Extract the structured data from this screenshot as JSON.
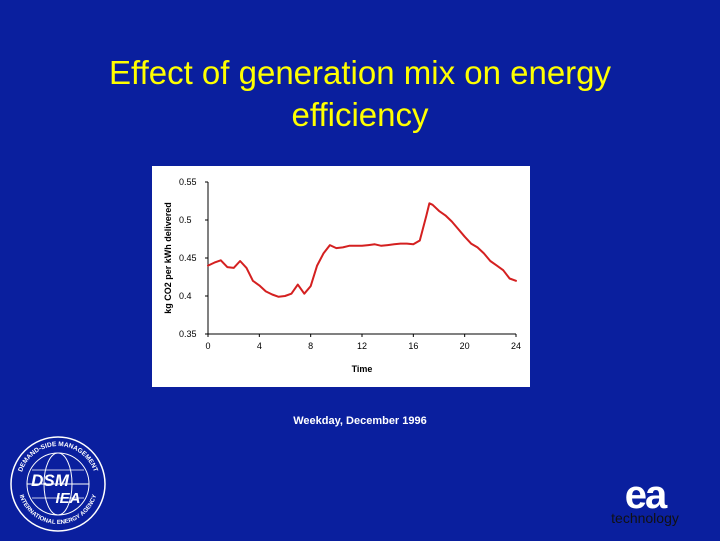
{
  "slide": {
    "title_line1": "Effect of generation mix on energy",
    "title_line2": "efficiency",
    "caption": "Weekday, December 1996"
  },
  "logos": {
    "dsm_ring_text_top": "DEMAND-SIDE MANAGEMENT",
    "dsm_ring_text_bottom": "INTERNATIONAL ENERGY AGENCY",
    "dsm_mark": "DSM",
    "dsm_sub": "IEA",
    "ea_mark": "ea",
    "ea_word": "technology"
  },
  "colors": {
    "background": "#0a1f9e",
    "title": "#ffff00",
    "series": "#d42020"
  },
  "chart_data": {
    "type": "line",
    "title": "",
    "xlabel": "Time",
    "ylabel": "kg CO2 per kWh delivered",
    "xlim": [
      0,
      24
    ],
    "ylim": [
      0.35,
      0.55
    ],
    "xticks": [
      "0",
      "4",
      "8",
      "12",
      "16",
      "20",
      "24"
    ],
    "yticks": [
      "0.35",
      "0.4",
      "0.45",
      "0.5",
      "0.55"
    ],
    "grid": false,
    "legend": "none",
    "series": [
      {
        "x": [
          0,
          0.5,
          1,
          1.5,
          2,
          2.5,
          3,
          3.5,
          4,
          4.5,
          5,
          5.5,
          6,
          6.5,
          7,
          7.5,
          8,
          8.5,
          9,
          9.5,
          10,
          10.5,
          11,
          11.5,
          12,
          12.5,
          13,
          13.5,
          14,
          14.5,
          15,
          15.5,
          16,
          16.5,
          17,
          17.25,
          17.5,
          18,
          18.5,
          19,
          19.5,
          20,
          20.5,
          21,
          21.5,
          22,
          22.5,
          23,
          23.5,
          24
        ],
        "y": [
          0.44,
          0.444,
          0.447,
          0.438,
          0.437,
          0.446,
          0.437,
          0.42,
          0.414,
          0.406,
          0.402,
          0.399,
          0.4,
          0.403,
          0.415,
          0.403,
          0.413,
          0.44,
          0.456,
          0.467,
          0.463,
          0.464,
          0.466,
          0.466,
          0.466,
          0.467,
          0.468,
          0.466,
          0.467,
          0.468,
          0.469,
          0.469,
          0.468,
          0.473,
          0.505,
          0.522,
          0.52,
          0.512,
          0.506,
          0.498,
          0.488,
          0.478,
          0.469,
          0.464,
          0.456,
          0.446,
          0.44,
          0.434,
          0.423,
          0.42
        ]
      }
    ]
  }
}
